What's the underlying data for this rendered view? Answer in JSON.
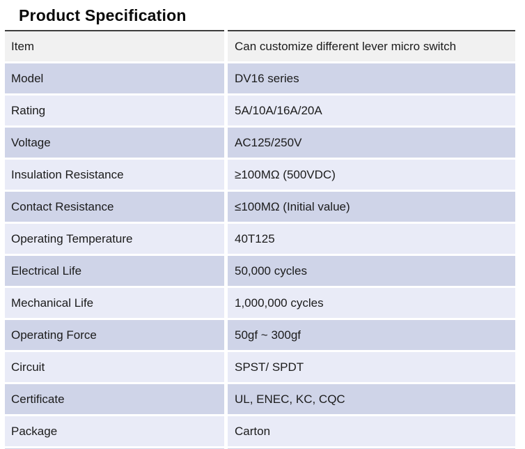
{
  "page": {
    "title": "Product Specification"
  },
  "table": {
    "rows": [
      {
        "label": "Item",
        "value": "Can customize different lever micro switch"
      },
      {
        "label": "Model",
        "value": "DV16 series"
      },
      {
        "label": "Rating",
        "value": "5A/10A/16A/20A"
      },
      {
        "label": "Voltage",
        "value": "AC125/250V"
      },
      {
        "label": "Insulation Resistance",
        "value": "≥100MΩ (500VDC)"
      },
      {
        "label": "Contact Resistance",
        "value": "≤100MΩ (Initial value)"
      },
      {
        "label": "Operating Temperature",
        "value": "40T125"
      },
      {
        "label": "Electrical Life",
        "value": "50,000 cycles"
      },
      {
        "label": "Mechanical Life",
        "value": "1,000,000 cycles"
      },
      {
        "label": "Operating Force",
        "value": "50gf ~ 300gf"
      },
      {
        "label": "Circuit",
        "value": "SPST/ SPDT"
      },
      {
        "label": "Certificate",
        "value": "UL, ENEC, KC, CQC"
      },
      {
        "label": "Package",
        "value": "Carton"
      }
    ]
  },
  "colors": {
    "row_gray": "#f1f1f1",
    "row_lavender": "#cfd4e8",
    "row_light": "#e9ebf7",
    "top_border": "#3d3d3d",
    "text": "#1b1b1b"
  }
}
